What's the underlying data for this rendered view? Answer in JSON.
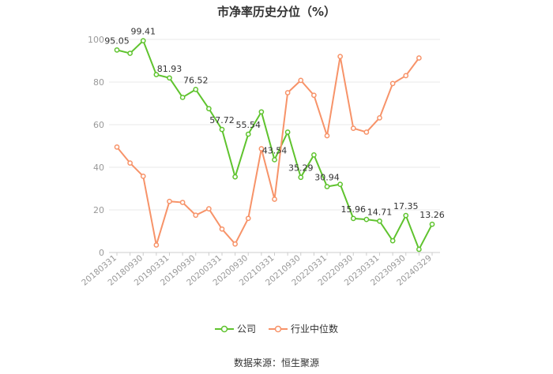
{
  "title": "市净率历史分位（%）",
  "source": "数据来源：恒生聚源",
  "colors": {
    "company": "#5fc32e",
    "industry": "#f79369",
    "grid": "#e8e8e8",
    "axis": "#999999",
    "label": "#333333"
  },
  "chart_data": {
    "type": "line",
    "title": "市净率历史分位（%）",
    "xlabel": "",
    "ylabel": "",
    "ylim": [
      0,
      100
    ],
    "yticks": [
      0,
      20,
      40,
      60,
      80,
      100
    ],
    "grid": true,
    "legend_position": "bottom",
    "x": [
      "20180331",
      "20180630",
      "20180930",
      "20181231",
      "20190331",
      "20190630",
      "20190930",
      "20191231",
      "20200331",
      "20200630",
      "20200930",
      "20201231",
      "20210331",
      "20210630",
      "20210930",
      "20211231",
      "20220331",
      "20220630",
      "20220930",
      "20221231",
      "20230331",
      "20230630",
      "20230930",
      "20231231",
      "20240329"
    ],
    "x_tick_labels": [
      "20180331",
      "20180930",
      "20190331",
      "20190930",
      "20200331",
      "20200930",
      "20210331",
      "20210930",
      "20220331",
      "20220930",
      "20230331",
      "20230930",
      "20240329"
    ],
    "series": [
      {
        "name": "公司",
        "color": "#5fc32e",
        "values": [
          95.05,
          93.5,
          99.41,
          83.5,
          81.93,
          72.8,
          76.52,
          67.5,
          57.72,
          35.5,
          55.54,
          66.0,
          43.54,
          56.5,
          35.29,
          45.8,
          30.94,
          32.0,
          15.96,
          15.5,
          14.71,
          5.5,
          17.35,
          1.5,
          13.26
        ],
        "labels": {
          "0": "95.05",
          "2": "99.41",
          "4": "81.93",
          "6": "76.52",
          "8": "57.72",
          "10": "55.54",
          "12": "43.54",
          "14": "35.29",
          "16": "30.94",
          "18": "15.96",
          "20": "14.71",
          "22": "17.35",
          "24": "13.26"
        }
      },
      {
        "name": "行业中位数",
        "color": "#f79369",
        "values": [
          49.5,
          42.0,
          35.8,
          3.5,
          24.0,
          23.5,
          17.5,
          20.5,
          11.0,
          4.0,
          16.0,
          48.7,
          25.0,
          75.0,
          80.8,
          73.8,
          54.8,
          92.0,
          58.3,
          56.5,
          63.2,
          79.3,
          83.0,
          91.3,
          null
        ]
      }
    ]
  }
}
